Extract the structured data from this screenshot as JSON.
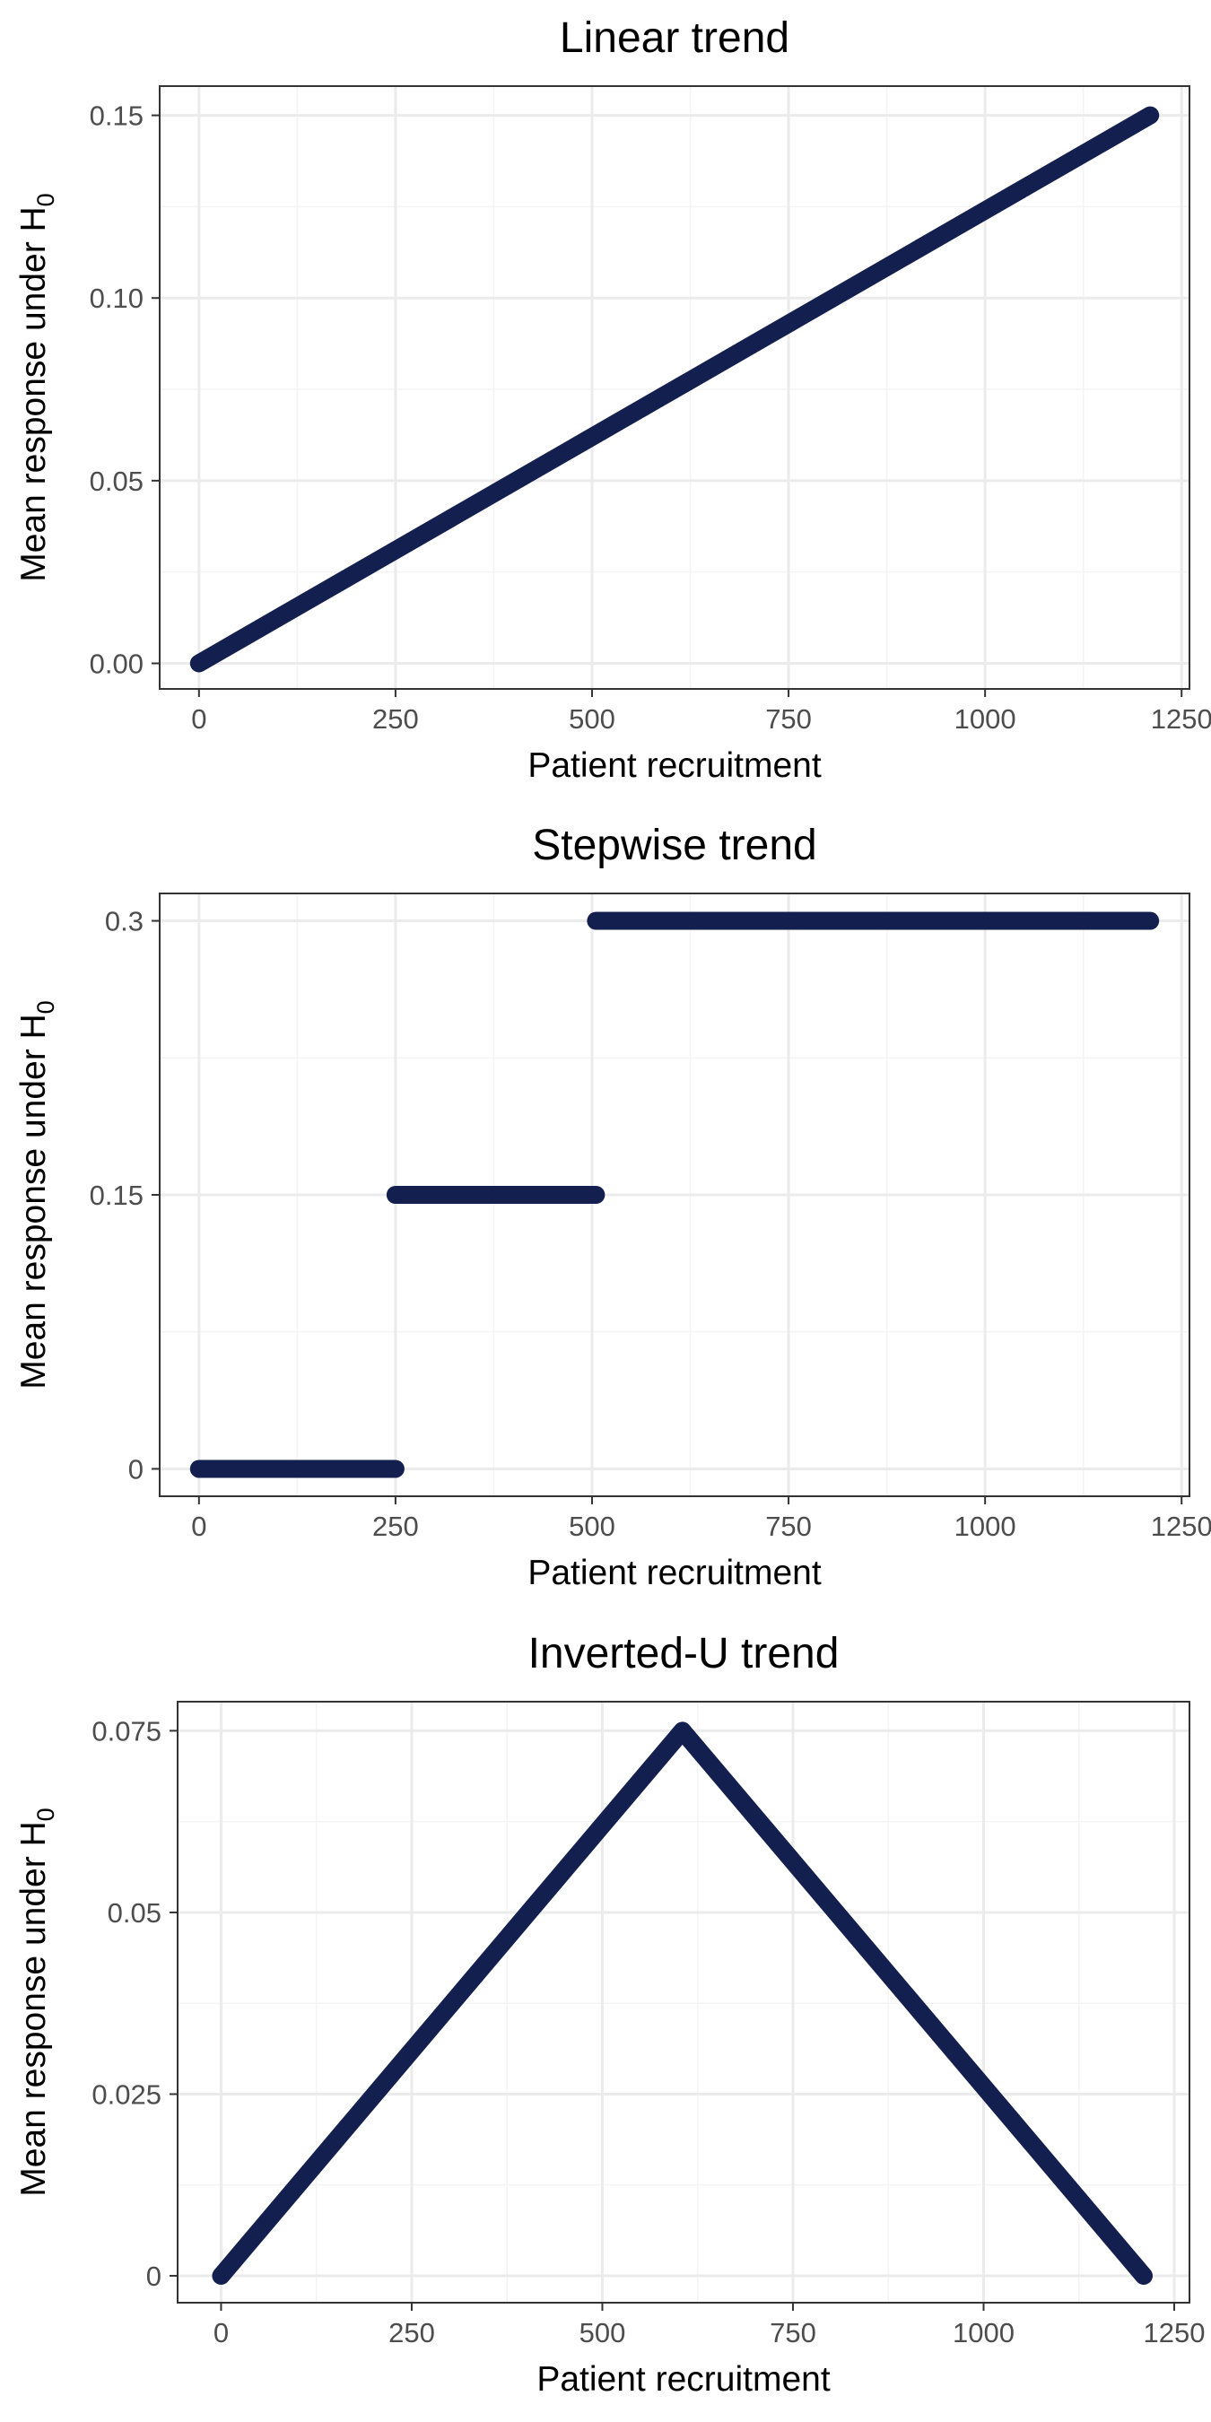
{
  "chart_data": [
    {
      "type": "line",
      "title": "Linear trend",
      "xlabel": "Patient recruitment",
      "ylabel": "Mean response under H",
      "ylabel_sub": "0",
      "xlim": [
        -50,
        1260
      ],
      "ylim": [
        -0.007,
        0.158
      ],
      "xticks": [
        0,
        250,
        500,
        750,
        1000,
        1250
      ],
      "xtick_labels": [
        "0",
        "250",
        "500",
        "750",
        "1000",
        "1250"
      ],
      "yticks": [
        0,
        0.05,
        0.1,
        0.15
      ],
      "ytick_labels": [
        "0.00",
        "0.05",
        "0.10",
        "0.15"
      ],
      "grid": true,
      "series": [
        {
          "segments": [
            {
              "x": [
                0,
                1210
              ],
              "y": [
                0,
                0.15
              ]
            }
          ]
        }
      ]
    },
    {
      "type": "line",
      "title": "Stepwise trend",
      "xlabel": "Patient recruitment",
      "ylabel": "Mean response under H",
      "ylabel_sub": "0",
      "xlim": [
        -50,
        1260
      ],
      "ylim": [
        -0.015,
        0.315
      ],
      "xticks": [
        0,
        250,
        500,
        750,
        1000,
        1250
      ],
      "xtick_labels": [
        "0",
        "250",
        "500",
        "750",
        "1000",
        "1250"
      ],
      "yticks": [
        0,
        0.15,
        0.3
      ],
      "ytick_labels": [
        "0",
        "0.15",
        "0.3"
      ],
      "grid": true,
      "series": [
        {
          "segments": [
            {
              "x": [
                0,
                250
              ],
              "y": [
                0,
                0
              ]
            },
            {
              "x": [
                250,
                505
              ],
              "y": [
                0.15,
                0.15
              ]
            },
            {
              "x": [
                505,
                1210
              ],
              "y": [
                0.3,
                0.3
              ]
            }
          ]
        }
      ]
    },
    {
      "type": "line",
      "title": "Inverted-U trend",
      "xlabel": "Patient recruitment",
      "ylabel": "Mean response under H",
      "ylabel_sub": "0",
      "xlim": [
        -57,
        1270
      ],
      "ylim": [
        -0.0037,
        0.079
      ],
      "xticks": [
        0,
        250,
        500,
        750,
        1000,
        1250
      ],
      "xtick_labels": [
        "0",
        "250",
        "500",
        "750",
        "1000",
        "1250"
      ],
      "yticks": [
        0,
        0.025,
        0.05,
        0.075
      ],
      "ytick_labels": [
        "0",
        "0.025",
        "0.05",
        "0.075"
      ],
      "grid": true,
      "series": [
        {
          "segments": [
            {
              "x": [
                0,
                605,
                1210
              ],
              "y": [
                0,
                0.075,
                0
              ]
            }
          ]
        }
      ]
    }
  ],
  "colors": {
    "line": "#131f4f",
    "panel_border": "#333333",
    "grid_major": "#ebebeb",
    "grid_minor": "#f4f4f4",
    "tick_text": "#4d4d4d",
    "axis_title": "#000000"
  }
}
